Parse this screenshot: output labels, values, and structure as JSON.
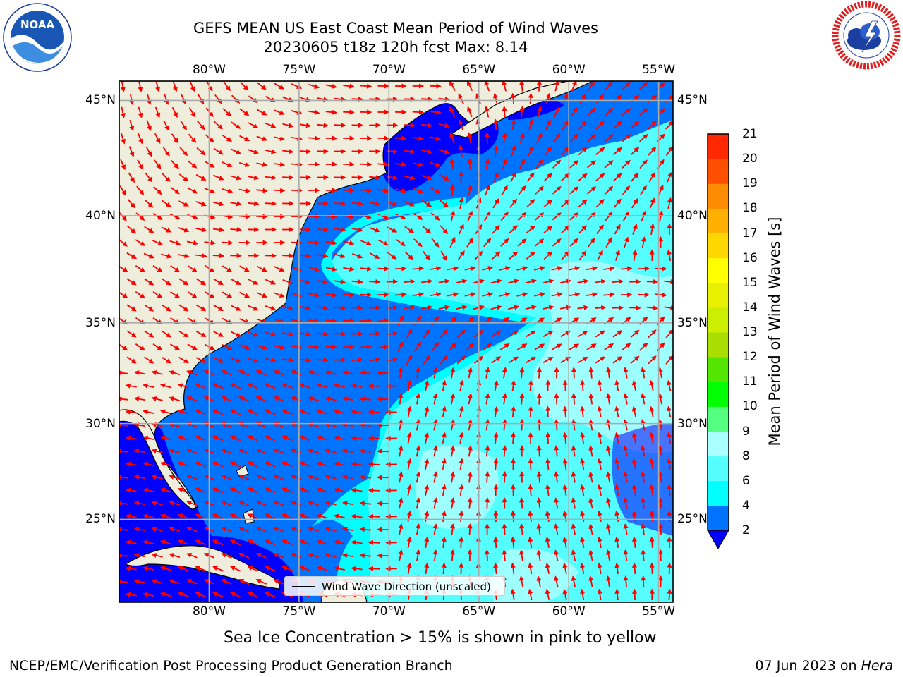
{
  "title": {
    "line1": "GEFS MEAN US East Coast Mean Period of Wind Waves",
    "line2": "20230605 t18z 120h fcst   Max: 8.14"
  },
  "logos": {
    "left": {
      "icon": "noaa-logo",
      "text": "NOAA",
      "ring_text": "NATIONAL OCEANIC AND ATMOSPHERIC ADMINISTRATION · U.S. DEPARTMENT OF COMMERCE"
    },
    "right": {
      "icon": "nws-logo",
      "ring_text": "NATIONAL WEATHER SERVICE"
    }
  },
  "map": {
    "extent": {
      "lon_min": -85,
      "lon_max": -54.2,
      "lat_min": 20.5,
      "lat_max": 45.8
    },
    "lon_ticks": [
      {
        "lon": -80,
        "label": "80°W"
      },
      {
        "lon": -75,
        "label": "75°W"
      },
      {
        "lon": -70,
        "label": "70°W"
      },
      {
        "lon": -65,
        "label": "65°W"
      },
      {
        "lon": -60,
        "label": "60°W"
      },
      {
        "lon": -55,
        "label": "55°W"
      }
    ],
    "lat_ticks": [
      {
        "lat": 45,
        "label": "45°N"
      },
      {
        "lat": 40,
        "label": "40°N"
      },
      {
        "lat": 35,
        "label": "35°N"
      },
      {
        "lat": 30,
        "label": "30°N"
      },
      {
        "lat": 25,
        "label": "25°N"
      }
    ],
    "colors": {
      "land": "#efeedd",
      "ocean_low": "#0000ff",
      "ocean_2_4": "#0073ff",
      "ocean_4_6": "#00ffff",
      "ocean_6_8": "#55ffff",
      "arrow": "#ff0000",
      "grid": "#aaaaaa"
    }
  },
  "legend": {
    "label": "Wind Wave Direction (unscaled)"
  },
  "colorbar": {
    "title": "Mean Period of Wind Waves [s]",
    "ticks": [
      "2",
      "4",
      "6",
      "8",
      "9",
      "10",
      "11",
      "12",
      "13",
      "14",
      "15",
      "16",
      "17",
      "18",
      "19",
      "20",
      "21"
    ],
    "colors": [
      "#0073ff",
      "#00ffff",
      "#55ffff",
      "#aaffff",
      "#55ff80",
      "#00ff00",
      "#55e600",
      "#aadd00",
      "#ccee00",
      "#e6f000",
      "#ffff00",
      "#ffd700",
      "#ffb000",
      "#ff8c00",
      "#ff5000",
      "#ff2800",
      "#ff0000"
    ],
    "extend_color": "#0000ff"
  },
  "note": "Sea Ice Concentration > 15% is shown in pink to yellow",
  "footer": {
    "left": "NCEP/EMC/Verification Post Processing Product Generation Branch",
    "right_date": "07 Jun 2023 on",
    "right_machine": "Hera"
  }
}
